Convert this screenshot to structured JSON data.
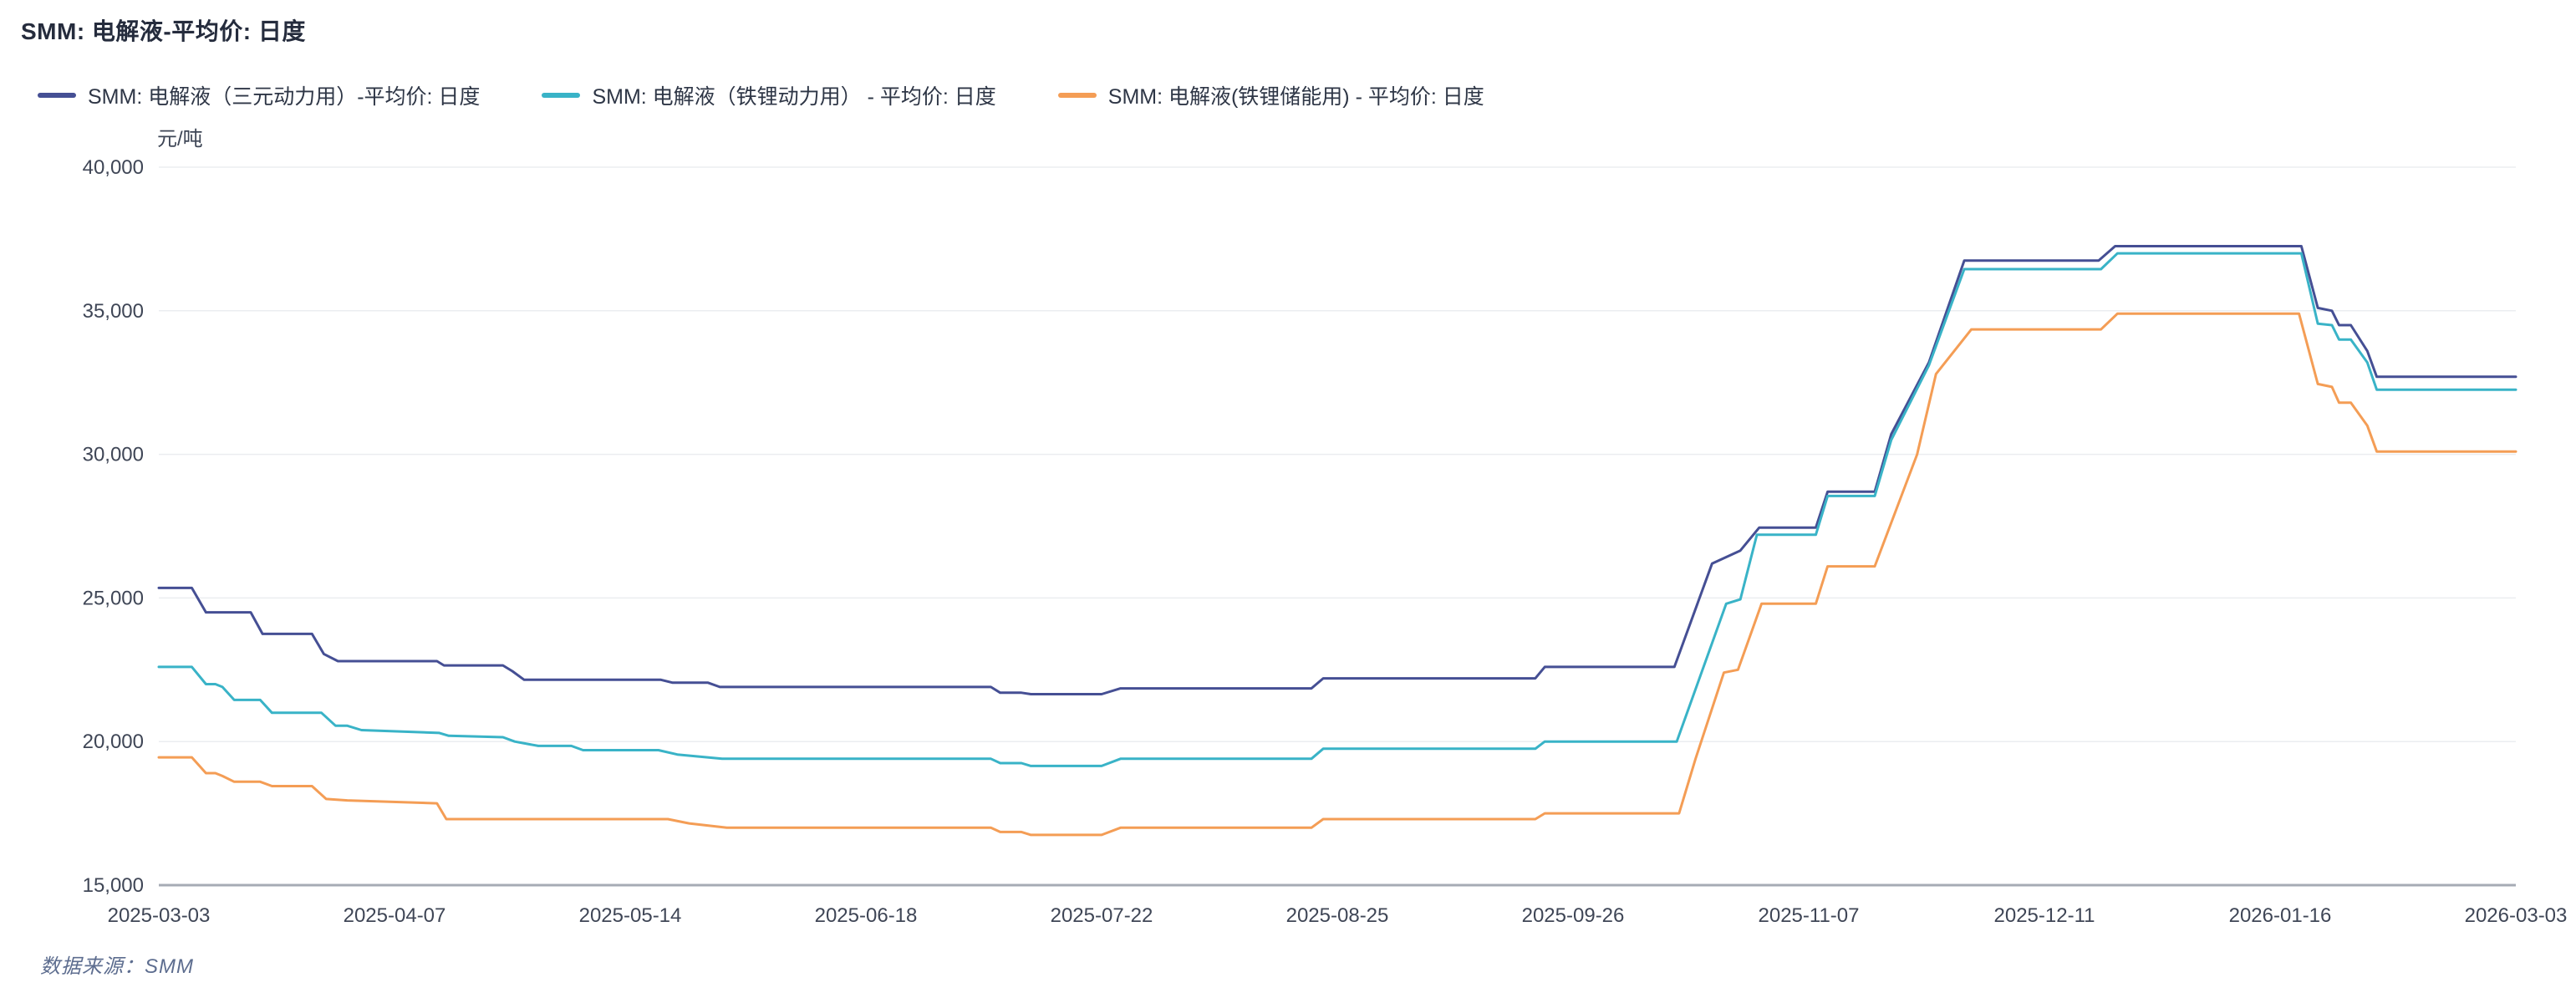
{
  "title": "SMM: 电解液-平均价: 日度",
  "unit_label": "元/吨",
  "source_note": "数据来源：SMM",
  "colors": {
    "series_ternary": "#454f94",
    "series_lfp_power": "#39b3c7",
    "series_lfp_storage": "#f49d55",
    "gridline": "#ebedf0",
    "axis_line": "#a6abb5",
    "tick_text": "#3f4656",
    "title_text": "#252c3d",
    "legend_text": "#2e3646",
    "source_text": "#5d6d8f"
  },
  "chart_data": {
    "type": "line",
    "title": "SMM: 电解液-平均价: 日度",
    "ylabel": "元/吨",
    "xlabel": "",
    "ylim": [
      15000,
      40000
    ],
    "grid": "horizontal only",
    "legend_position": "top-left",
    "x_axis_note": "trading days, evenly spaced category axis; tick positions in percent of axis width",
    "yticks": [
      {
        "value": 15000,
        "label": "15,000"
      },
      {
        "value": 20000,
        "label": "20,000"
      },
      {
        "value": 25000,
        "label": "25,000"
      },
      {
        "value": 30000,
        "label": "30,000"
      },
      {
        "value": 35000,
        "label": "35,000"
      },
      {
        "value": 40000,
        "label": "40,000"
      }
    ],
    "xticks": [
      {
        "pct": 0,
        "label": "2025-03-03"
      },
      {
        "pct": 10,
        "label": "2025-04-07"
      },
      {
        "pct": 20,
        "label": "2025-05-14"
      },
      {
        "pct": 30,
        "label": "2025-06-18"
      },
      {
        "pct": 40,
        "label": "2025-07-22"
      },
      {
        "pct": 50,
        "label": "2025-08-25"
      },
      {
        "pct": 60,
        "label": "2025-09-26"
      },
      {
        "pct": 70,
        "label": "2025-11-07"
      },
      {
        "pct": 80,
        "label": "2025-12-11"
      },
      {
        "pct": 90,
        "label": "2026-01-16"
      },
      {
        "pct": 100,
        "label": "2026-03-03"
      }
    ],
    "series": [
      {
        "name": "SMM: 电解液（三元动力用）-平均价: 日度",
        "color": "#454f94",
        "unit": "元/吨",
        "points": [
          [
            0,
            25350
          ],
          [
            1.4,
            25350
          ],
          [
            2.0,
            24500
          ],
          [
            3.9,
            24500
          ],
          [
            4.4,
            23750
          ],
          [
            6.5,
            23750
          ],
          [
            7.0,
            23050
          ],
          [
            7.6,
            22800
          ],
          [
            11.8,
            22800
          ],
          [
            12.1,
            22650
          ],
          [
            14.6,
            22650
          ],
          [
            15.0,
            22450
          ],
          [
            15.5,
            22150
          ],
          [
            21.3,
            22150
          ],
          [
            21.8,
            22050
          ],
          [
            23.3,
            22050
          ],
          [
            23.8,
            21900
          ],
          [
            35.3,
            21900
          ],
          [
            35.7,
            21700
          ],
          [
            36.6,
            21700
          ],
          [
            37.0,
            21650
          ],
          [
            40.0,
            21650
          ],
          [
            40.8,
            21850
          ],
          [
            48.9,
            21850
          ],
          [
            49.4,
            22200
          ],
          [
            58.4,
            22200
          ],
          [
            58.8,
            22600
          ],
          [
            64.3,
            22600
          ],
          [
            65.9,
            26200
          ],
          [
            67.1,
            26650
          ],
          [
            67.9,
            27450
          ],
          [
            70.3,
            27450
          ],
          [
            70.8,
            28700
          ],
          [
            72.8,
            28700
          ],
          [
            73.5,
            30700
          ],
          [
            75.1,
            33200
          ],
          [
            76.6,
            36750
          ],
          [
            82.3,
            36750
          ],
          [
            83.0,
            37250
          ],
          [
            90.9,
            37250
          ],
          [
            91.6,
            35100
          ],
          [
            92.2,
            35000
          ],
          [
            92.5,
            34500
          ],
          [
            93.0,
            34500
          ],
          [
            93.7,
            33600
          ],
          [
            94.1,
            32700
          ],
          [
            100,
            32700
          ]
        ]
      },
      {
        "name": "SMM: 电解液（铁锂动力用） - 平均价: 日度",
        "color": "#39b3c7",
        "unit": "元/吨",
        "points": [
          [
            0,
            22600
          ],
          [
            1.4,
            22600
          ],
          [
            2.0,
            22000
          ],
          [
            2.4,
            22000
          ],
          [
            2.7,
            21900
          ],
          [
            3.2,
            21450
          ],
          [
            4.3,
            21450
          ],
          [
            4.8,
            21000
          ],
          [
            6.9,
            21000
          ],
          [
            7.5,
            20550
          ],
          [
            8.0,
            20550
          ],
          [
            8.6,
            20400
          ],
          [
            11.9,
            20300
          ],
          [
            12.3,
            20200
          ],
          [
            14.6,
            20150
          ],
          [
            15.1,
            20000
          ],
          [
            16.1,
            19850
          ],
          [
            17.5,
            19850
          ],
          [
            18.0,
            19700
          ],
          [
            21.2,
            19700
          ],
          [
            22.0,
            19550
          ],
          [
            23.9,
            19400
          ],
          [
            35.3,
            19400
          ],
          [
            35.7,
            19250
          ],
          [
            36.6,
            19250
          ],
          [
            37.0,
            19150
          ],
          [
            40.0,
            19150
          ],
          [
            40.8,
            19400
          ],
          [
            48.9,
            19400
          ],
          [
            49.4,
            19750
          ],
          [
            58.4,
            19750
          ],
          [
            58.8,
            20000
          ],
          [
            64.4,
            20000
          ],
          [
            66.5,
            24800
          ],
          [
            67.1,
            24950
          ],
          [
            67.8,
            27200
          ],
          [
            70.3,
            27200
          ],
          [
            70.8,
            28550
          ],
          [
            72.8,
            28550
          ],
          [
            73.5,
            30500
          ],
          [
            75.1,
            33100
          ],
          [
            76.6,
            36450
          ],
          [
            82.4,
            36450
          ],
          [
            83.1,
            37000
          ],
          [
            90.9,
            37000
          ],
          [
            91.6,
            34550
          ],
          [
            92.2,
            34500
          ],
          [
            92.5,
            34000
          ],
          [
            93.0,
            34000
          ],
          [
            93.7,
            33200
          ],
          [
            94.1,
            32250
          ],
          [
            100,
            32250
          ]
        ]
      },
      {
        "name": "SMM: 电解液(铁锂储能用) - 平均价: 日度",
        "color": "#f49d55",
        "unit": "元/吨",
        "points": [
          [
            0,
            19450
          ],
          [
            1.4,
            19450
          ],
          [
            2.0,
            18900
          ],
          [
            2.4,
            18900
          ],
          [
            2.7,
            18800
          ],
          [
            3.2,
            18600
          ],
          [
            4.3,
            18600
          ],
          [
            4.8,
            18450
          ],
          [
            6.5,
            18450
          ],
          [
            7.1,
            18000
          ],
          [
            8.0,
            17950
          ],
          [
            11.8,
            17850
          ],
          [
            12.2,
            17300
          ],
          [
            21.6,
            17300
          ],
          [
            22.5,
            17150
          ],
          [
            24.1,
            17000
          ],
          [
            35.3,
            17000
          ],
          [
            35.7,
            16850
          ],
          [
            36.6,
            16850
          ],
          [
            37.0,
            16750
          ],
          [
            40.0,
            16750
          ],
          [
            40.8,
            17000
          ],
          [
            48.9,
            17000
          ],
          [
            49.4,
            17300
          ],
          [
            58.4,
            17300
          ],
          [
            58.8,
            17500
          ],
          [
            64.5,
            17500
          ],
          [
            65.2,
            19400
          ],
          [
            66.4,
            22400
          ],
          [
            67.0,
            22500
          ],
          [
            68.0,
            24800
          ],
          [
            70.3,
            24800
          ],
          [
            70.8,
            26100
          ],
          [
            72.8,
            26100
          ],
          [
            74.6,
            30000
          ],
          [
            75.4,
            32800
          ],
          [
            76.9,
            34350
          ],
          [
            82.4,
            34350
          ],
          [
            83.1,
            34900
          ],
          [
            90.8,
            34900
          ],
          [
            91.6,
            32450
          ],
          [
            92.2,
            32350
          ],
          [
            92.5,
            31800
          ],
          [
            93.0,
            31800
          ],
          [
            93.7,
            31000
          ],
          [
            94.1,
            30100
          ],
          [
            100,
            30100
          ]
        ]
      }
    ]
  }
}
